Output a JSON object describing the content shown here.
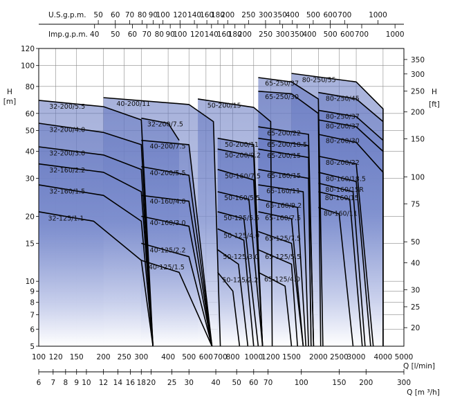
{
  "chart_data": {
    "type": "area",
    "title": "",
    "axes": {
      "y_left": {
        "labels": [
          "H",
          "[m]"
        ],
        "scale": "log",
        "range": [
          5,
          120
        ],
        "ticks": [
          5,
          6,
          7,
          8,
          9,
          10,
          15,
          20,
          30,
          40,
          50,
          60,
          80,
          100,
          120
        ]
      },
      "y_right": {
        "labels": [
          "H",
          "[ft]"
        ],
        "scale": "log",
        "ticks": [
          20,
          25,
          30,
          40,
          50,
          75,
          100,
          150,
          200,
          250,
          300,
          350
        ]
      },
      "x_flow_lmin": {
        "label": "Q [l/min]",
        "scale": "log",
        "range": [
          100,
          5000
        ],
        "ticks": [
          100,
          120,
          150,
          200,
          250,
          300,
          400,
          500,
          600,
          700,
          800,
          1000,
          1200,
          1500,
          2000,
          2500,
          3000,
          4000,
          5000
        ]
      },
      "x_flow_m3h": {
        "label": "Q [m ³/h]",
        "scale": "log",
        "ticks": [
          6,
          7,
          8,
          9,
          10,
          12,
          14,
          16,
          18,
          20,
          25,
          30,
          40,
          50,
          60,
          70,
          100,
          150,
          200,
          300
        ]
      },
      "x_usgpm": {
        "label": "U.S.g.p.m.",
        "scale": "log",
        "ticks": [
          50,
          60,
          70,
          80,
          90,
          100,
          120,
          140,
          160,
          180,
          200,
          250,
          300,
          350,
          400,
          500,
          600,
          700,
          1000
        ]
      },
      "x_impgpm": {
        "label": "Imp.g.p.m.",
        "scale": "log",
        "ticks": [
          40,
          50,
          60,
          70,
          80,
          90,
          100,
          120,
          140,
          160,
          180,
          200,
          250,
          300,
          350,
          400,
          500,
          600,
          700,
          1000
        ]
      }
    },
    "grid": true,
    "legend": "none",
    "colors": {
      "fill_top": "#6b7fc4",
      "fill_bottom": "#ffffff",
      "line": "#000000"
    },
    "models": [
      {
        "label": "32-125/1.1",
        "curve": [
          [
            100,
            21
          ],
          [
            180,
            19
          ],
          [
            300,
            12.5
          ],
          [
            340,
            5
          ]
        ]
      },
      {
        "label": "32-160/1.5",
        "curve": [
          [
            100,
            28
          ],
          [
            200,
            25
          ],
          [
            300,
            19
          ],
          [
            340,
            5
          ]
        ]
      },
      {
        "label": "32-160/2.2",
        "curve": [
          [
            100,
            35
          ],
          [
            200,
            32
          ],
          [
            300,
            26
          ],
          [
            340,
            5
          ]
        ]
      },
      {
        "label": "32-200/3.0",
        "curve": [
          [
            100,
            42
          ],
          [
            200,
            38.5
          ],
          [
            300,
            33
          ],
          [
            340,
            5
          ]
        ]
      },
      {
        "label": "32-200/4.0",
        "curve": [
          [
            100,
            54
          ],
          [
            200,
            49
          ],
          [
            300,
            43
          ],
          [
            340,
            5
          ]
        ]
      },
      {
        "label": "32-200/5.5",
        "curve": [
          [
            100,
            69
          ],
          [
            200,
            64.5
          ],
          [
            300,
            56
          ],
          [
            340,
            5
          ]
        ]
      },
      {
        "label": "32-200/7.5",
        "curve": [
          [
            300,
            57
          ],
          [
            400,
            54
          ],
          [
            450,
            45
          ]
        ]
      },
      {
        "label": "40-125/1.5",
        "curve": [
          [
            300,
            12.5
          ],
          [
            450,
            11
          ],
          [
            640,
            5
          ]
        ]
      },
      {
        "label": "40-125/2.2",
        "curve": [
          [
            300,
            15
          ],
          [
            500,
            13
          ],
          [
            640,
            5
          ]
        ]
      },
      {
        "label": "40-160/3.0",
        "curve": [
          [
            300,
            20
          ],
          [
            500,
            18
          ],
          [
            640,
            5
          ]
        ]
      },
      {
        "label": "40-160/4.0",
        "curve": [
          [
            300,
            25
          ],
          [
            500,
            23.5
          ],
          [
            640,
            5
          ]
        ]
      },
      {
        "label": "40-200/5.5",
        "curve": [
          [
            300,
            34
          ],
          [
            500,
            31
          ],
          [
            640,
            5
          ]
        ]
      },
      {
        "label": "40-200/7.5",
        "curve": [
          [
            300,
            45
          ],
          [
            500,
            43
          ],
          [
            640,
            5
          ]
        ]
      },
      {
        "label": "40-200/11",
        "curve": [
          [
            200,
            71
          ],
          [
            500,
            66
          ],
          [
            650,
            55
          ],
          [
            700,
            5
          ]
        ]
      },
      {
        "label": "50-125/2.2",
        "curve": [
          [
            680,
            11
          ],
          [
            800,
            9
          ],
          [
            860,
            5
          ]
        ]
      },
      {
        "label": "50-125/3.0",
        "curve": [
          [
            680,
            14
          ],
          [
            850,
            12
          ],
          [
            940,
            5
          ]
        ]
      },
      {
        "label": "50-125/4.0",
        "curve": [
          [
            680,
            17.5
          ],
          [
            900,
            15.5
          ],
          [
            1000,
            5
          ]
        ]
      },
      {
        "label": "50-125/5.5",
        "curve": [
          [
            680,
            21
          ],
          [
            900,
            19.5
          ],
          [
            1050,
            5
          ]
        ]
      },
      {
        "label": "50-160/5.5",
        "curve": [
          [
            680,
            26
          ],
          [
            950,
            24
          ],
          [
            1100,
            5
          ]
        ]
      },
      {
        "label": "50-160/7.5",
        "curve": [
          [
            680,
            33
          ],
          [
            1000,
            29.5
          ],
          [
            1100,
            5
          ]
        ]
      },
      {
        "label": "50-200/9.2",
        "curve": [
          [
            680,
            41
          ],
          [
            1000,
            38
          ],
          [
            1100,
            5
          ]
        ]
      },
      {
        "label": "50-200/11",
        "curve": [
          [
            680,
            46
          ],
          [
            1000,
            43
          ],
          [
            1100,
            5
          ]
        ]
      },
      {
        "label": "50-200/15",
        "curve": [
          [
            550,
            70
          ],
          [
            1000,
            64
          ],
          [
            1200,
            55
          ],
          [
            1220,
            5
          ]
        ]
      },
      {
        "label": "65-125/4.0",
        "curve": [
          [
            1050,
            11
          ],
          [
            1400,
            9.5
          ],
          [
            1500,
            5
          ]
        ]
      },
      {
        "label": "65-125/5.5",
        "curve": [
          [
            1050,
            14
          ],
          [
            1500,
            12
          ],
          [
            1600,
            5
          ]
        ]
      },
      {
        "label": "65-125/7.5",
        "curve": [
          [
            1050,
            17
          ],
          [
            1500,
            15
          ],
          [
            1700,
            5
          ]
        ]
      },
      {
        "label": "65-160/7.5",
        "curve": [
          [
            1050,
            21
          ],
          [
            1500,
            19.5
          ],
          [
            1700,
            5
          ]
        ]
      },
      {
        "label": "65-160/9.2",
        "curve": [
          [
            1050,
            24
          ],
          [
            1600,
            22
          ],
          [
            1750,
            5
          ]
        ]
      },
      {
        "label": "65-160/11",
        "curve": [
          [
            1050,
            28
          ],
          [
            1700,
            26
          ],
          [
            1800,
            5
          ]
        ]
      },
      {
        "label": "65-160/15",
        "curve": [
          [
            1050,
            33
          ],
          [
            1800,
            30
          ],
          [
            1850,
            5
          ]
        ]
      },
      {
        "label": "65-200/15",
        "curve": [
          [
            1050,
            41
          ],
          [
            1800,
            37.5
          ],
          [
            1850,
            5
          ]
        ]
      },
      {
        "label": "65-200/18.5",
        "curve": [
          [
            1050,
            46
          ],
          [
            1800,
            42.5
          ],
          [
            1900,
            5
          ]
        ]
      },
      {
        "label": "65-200/22",
        "curve": [
          [
            1050,
            52
          ],
          [
            1800,
            48
          ],
          [
            1900,
            5
          ]
        ]
      },
      {
        "label": "65-250/30",
        "curve": [
          [
            1050,
            76
          ],
          [
            1500,
            74
          ],
          [
            2000,
            60
          ],
          [
            2050,
            5
          ]
        ]
      },
      {
        "label": "65-250/37",
        "curve": [
          [
            1050,
            88
          ],
          [
            1500,
            84
          ],
          [
            2000,
            70
          ],
          [
            2100,
            5
          ]
        ]
      },
      {
        "label": "80-160/11",
        "curve": [
          [
            2000,
            22
          ],
          [
            2500,
            20.5
          ],
          [
            2900,
            5
          ]
        ]
      },
      {
        "label": "80-160/15",
        "curve": [
          [
            2000,
            26
          ],
          [
            2800,
            24
          ],
          [
            3200,
            5
          ]
        ]
      },
      {
        "label": "80-160/15R",
        "curve": [
          [
            2000,
            28.5
          ],
          [
            2900,
            26
          ],
          [
            3300,
            5
          ]
        ]
      },
      {
        "label": "80-160/18.5",
        "curve": [
          [
            2000,
            32
          ],
          [
            3000,
            29
          ],
          [
            3500,
            5
          ]
        ]
      },
      {
        "label": "80-200/22",
        "curve": [
          [
            2000,
            38
          ],
          [
            3000,
            35
          ],
          [
            3600,
            5
          ]
        ]
      },
      {
        "label": "80-200/30",
        "curve": [
          [
            2000,
            48
          ],
          [
            3000,
            44
          ],
          [
            4000,
            32
          ],
          [
            4000,
            5
          ]
        ]
      },
      {
        "label": "80-200/37",
        "curve": [
          [
            2000,
            56
          ],
          [
            3000,
            52
          ],
          [
            4000,
            40
          ]
        ]
      },
      {
        "label": "80-250/37",
        "curve": [
          [
            2000,
            62
          ],
          [
            3000,
            58
          ],
          [
            4000,
            45
          ]
        ]
      },
      {
        "label": "80-250/45",
        "curve": [
          [
            2000,
            75
          ],
          [
            3000,
            70
          ],
          [
            4000,
            55
          ]
        ]
      },
      {
        "label": "80-250/55",
        "curve": [
          [
            1500,
            92
          ],
          [
            3000,
            84
          ],
          [
            4000,
            63
          ],
          [
            4000,
            5
          ]
        ]
      }
    ]
  }
}
